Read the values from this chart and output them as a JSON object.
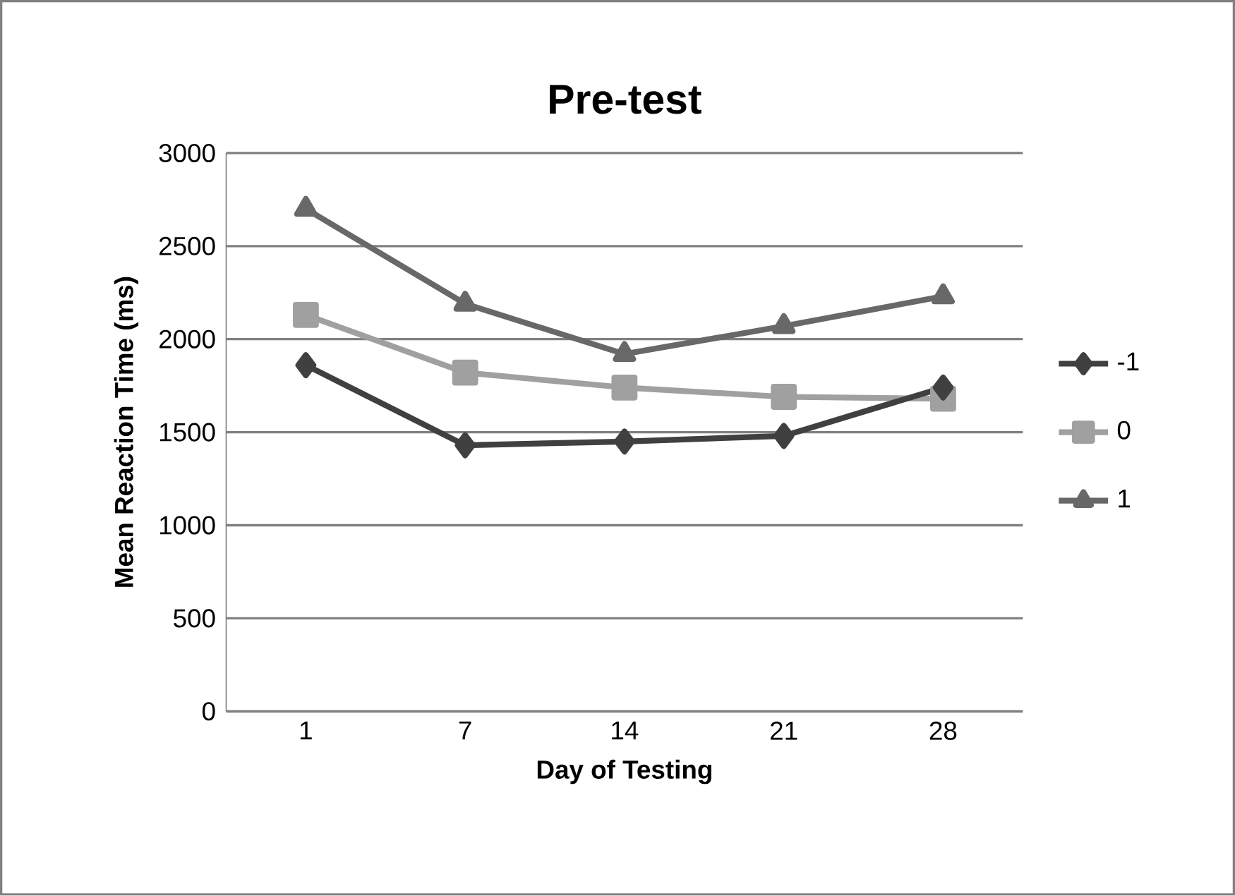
{
  "chart_data": {
    "type": "line",
    "title": "Pre-test",
    "xlabel": "Day of Testing",
    "ylabel": "Mean Reaction Time (ms)",
    "categories": [
      "1",
      "7",
      "14",
      "21",
      "28"
    ],
    "series": [
      {
        "name": "-1",
        "color": "#404040",
        "marker": "diamond",
        "values": [
          1860,
          1430,
          1450,
          1480,
          1740
        ]
      },
      {
        "name": "0",
        "color": "#a0a0a0",
        "marker": "square",
        "values": [
          2130,
          1820,
          1740,
          1690,
          1680
        ]
      },
      {
        "name": "1",
        "color": "#686868",
        "marker": "triangle",
        "values": [
          2700,
          2190,
          1920,
          2070,
          2230
        ]
      }
    ],
    "ylim": [
      0,
      3000
    ],
    "yticks": [
      0,
      500,
      1000,
      1500,
      2000,
      2500,
      3000
    ],
    "grid": "y",
    "legend": "right"
  }
}
